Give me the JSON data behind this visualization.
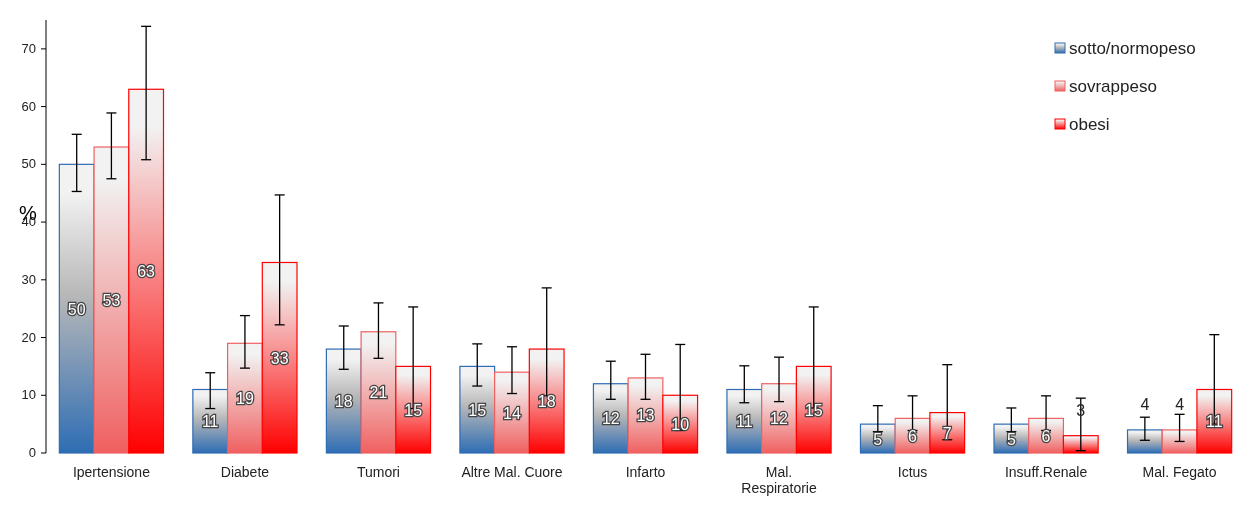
{
  "chart_data": {
    "type": "bar",
    "ylabel": "%",
    "categories": [
      "Ipertensione",
      "Diabete",
      "Tumori",
      "Altre Mal. Cuore",
      "Infarto",
      "Mal. Respiratorie",
      "Ictus",
      "Insuff.Renale",
      "Mal. Fegato"
    ],
    "series": [
      {
        "name": "sotto/normopeso",
        "color": "#2e6db4",
        "values": [
          50,
          11,
          18,
          15,
          12,
          11,
          5,
          5,
          4
        ],
        "errors": [
          [
            45.3,
            55.2
          ],
          [
            7.7,
            13.9
          ],
          [
            14.5,
            22
          ],
          [
            11.6,
            18.9
          ],
          [
            9.3,
            15.9
          ],
          [
            8.7,
            15.1
          ],
          [
            3.7,
            8.2
          ],
          [
            3.7,
            7.8
          ],
          [
            2.2,
            6.2
          ]
        ]
      },
      {
        "name": "sovrappeso",
        "color": "#f06060",
        "values": [
          53,
          19,
          21,
          14,
          13,
          12,
          6,
          6,
          4
        ],
        "errors": [
          [
            47.5,
            58.9
          ],
          [
            14.7,
            23.8
          ],
          [
            16.4,
            26
          ],
          [
            10.3,
            18.4
          ],
          [
            9.3,
            17.1
          ],
          [
            8.9,
            16.6
          ],
          [
            3.9,
            9.9
          ],
          [
            3.9,
            9.9
          ],
          [
            2,
            6.7
          ]
        ]
      },
      {
        "name": "obesi",
        "color": "#ff0000",
        "values": [
          63,
          33,
          15,
          18,
          10,
          15,
          7,
          3,
          11
        ],
        "errors": [
          [
            50.8,
            73.9
          ],
          [
            22.2,
            44.7
          ],
          [
            7.7,
            25.3
          ],
          [
            9.9,
            28.6
          ],
          [
            3.9,
            18.8
          ],
          [
            7.8,
            25.3
          ],
          [
            2.3,
            15.3
          ],
          [
            0.4,
            9.5
          ],
          [
            5,
            20.5
          ]
        ]
      }
    ],
    "ylim": [
      0,
      75
    ],
    "yticks": [
      0,
      10,
      20,
      30,
      40,
      50,
      60,
      70
    ],
    "data_labels": true,
    "legend": "top right",
    "grid": false
  }
}
